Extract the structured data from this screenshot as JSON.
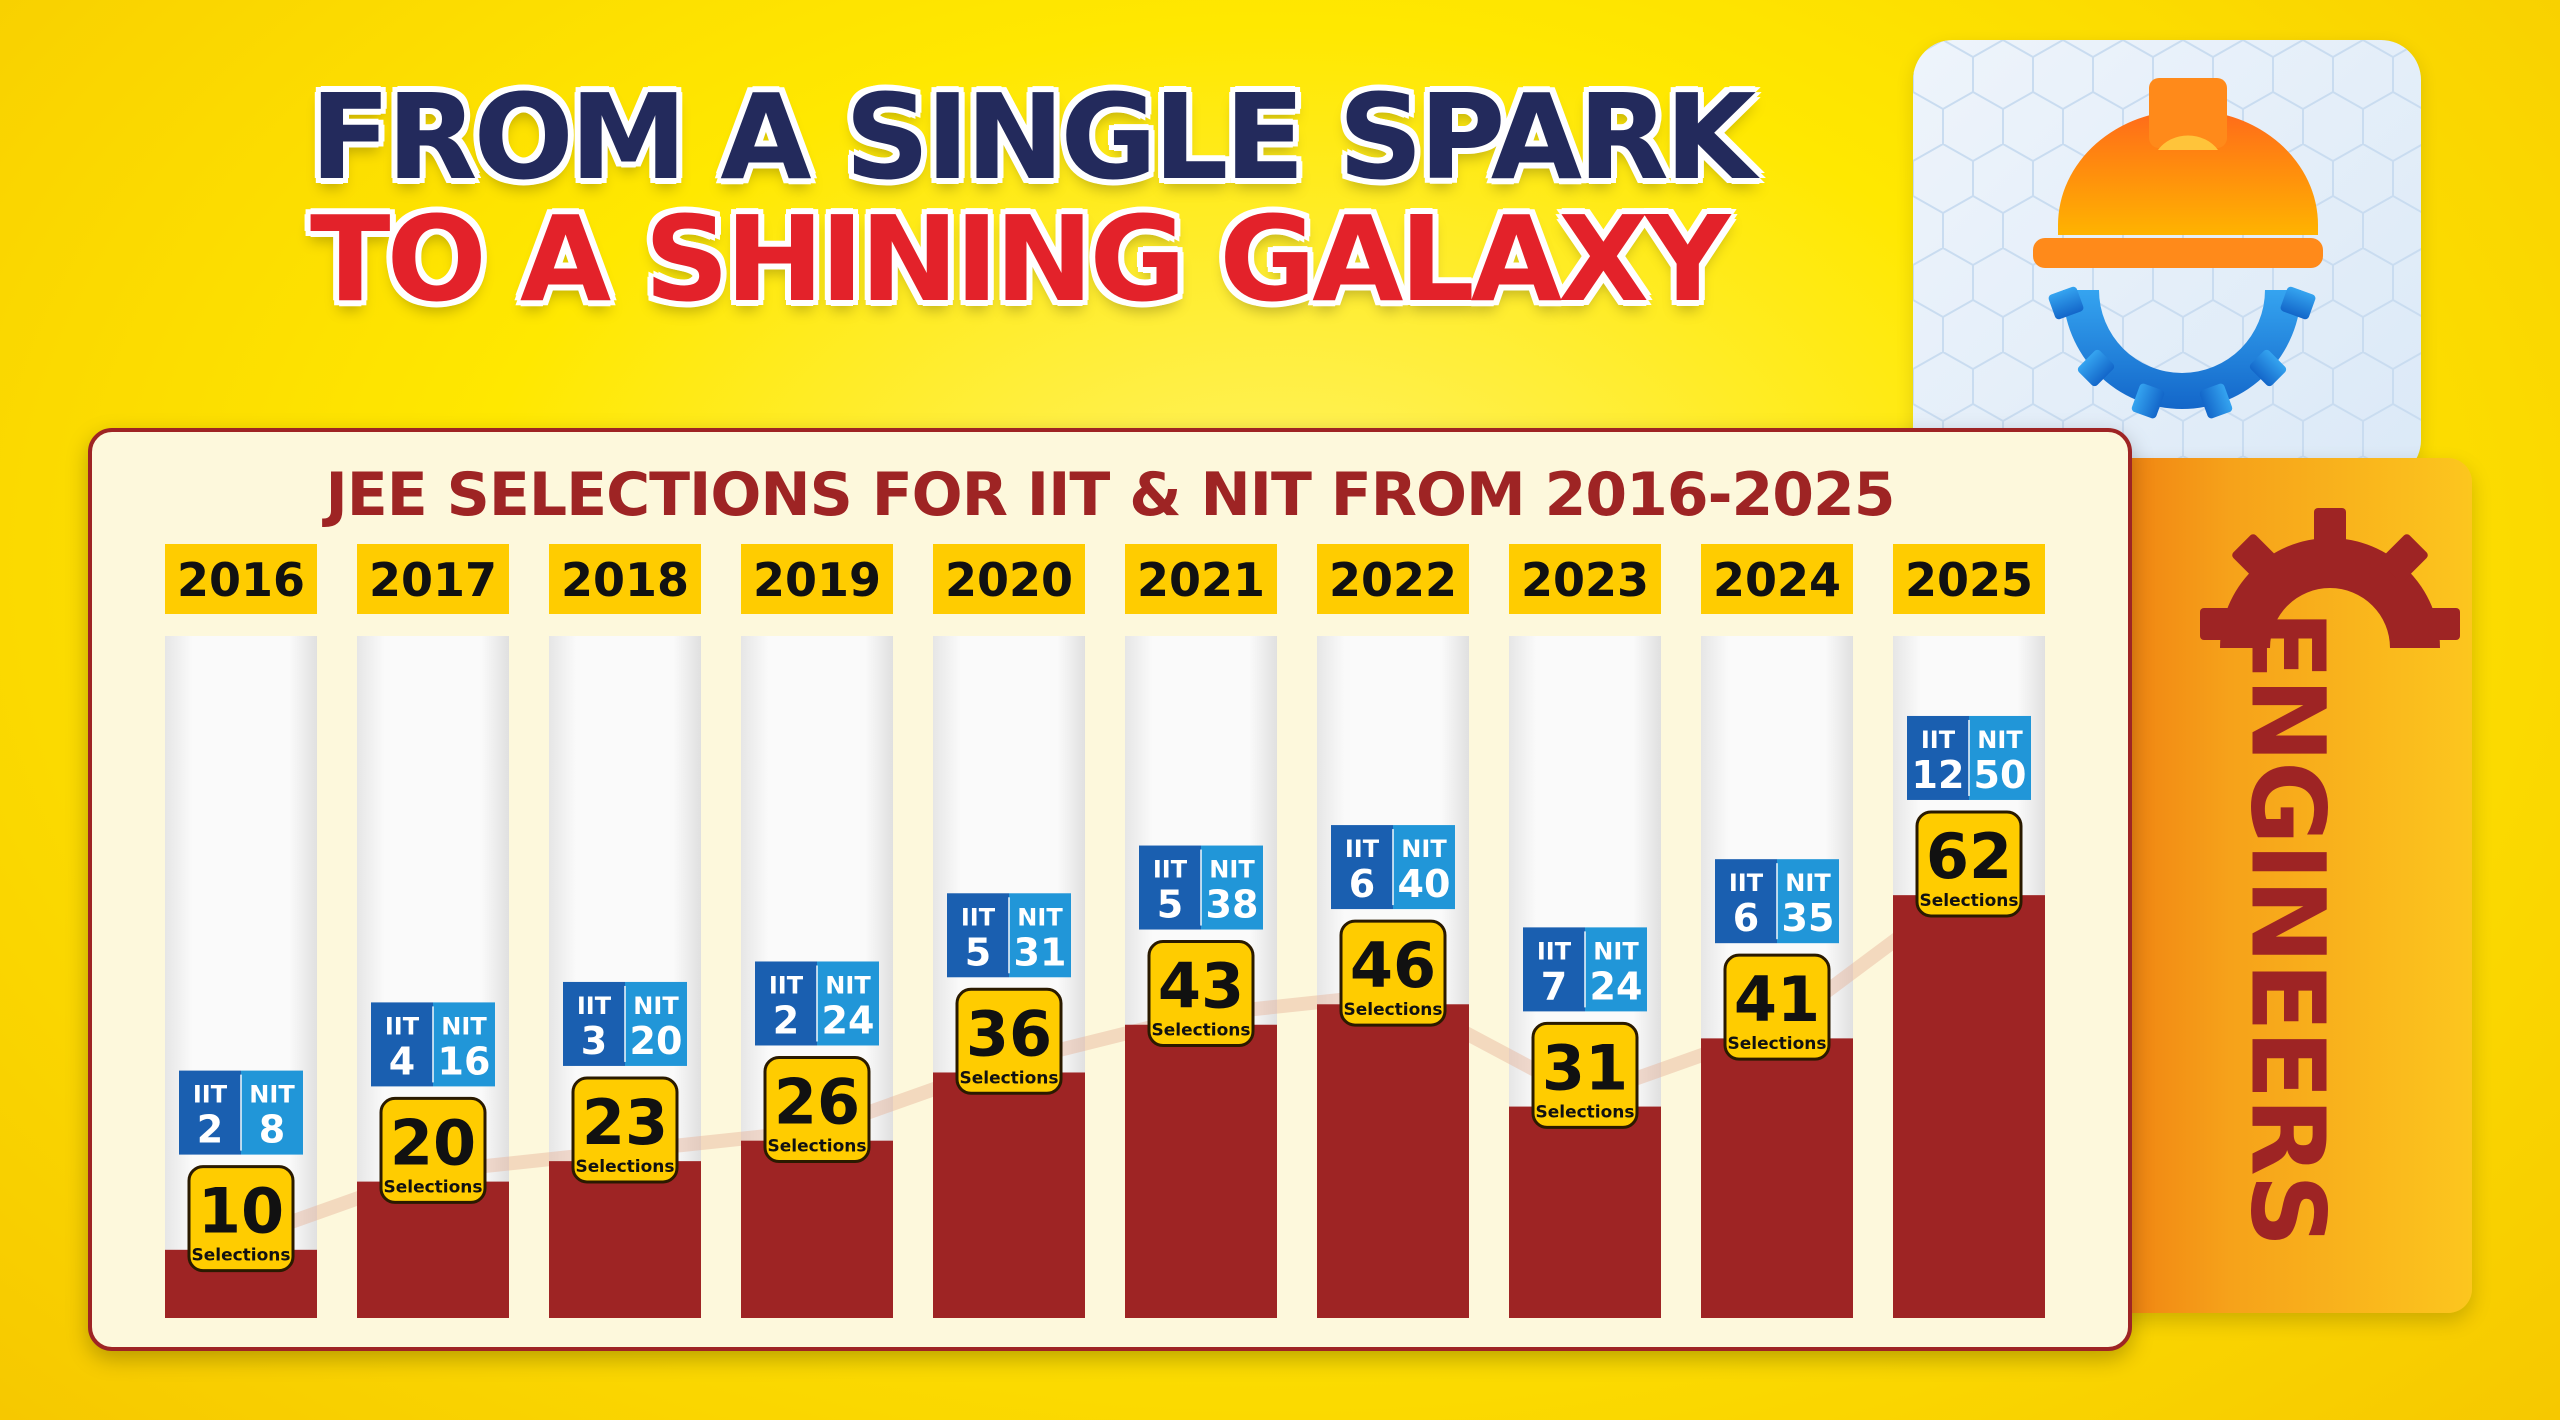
{
  "headline": {
    "line1": "FROM A SINGLE SPARK",
    "line2": "TO A SHINING GALAXY"
  },
  "side_label": "ENGINEERS",
  "icons": {
    "logo": "helmet-gear-icon",
    "side": "gear-icon"
  },
  "colors": {
    "bar": "#9e2424",
    "year_tag": "#ffcc00",
    "iit_tag": "#1a5fb0",
    "nit_tag": "#2196d8",
    "headline_dark": "#232a5c",
    "headline_red": "#e3222a"
  },
  "chart_data": {
    "type": "bar",
    "title": "JEE SELECTIONS FOR IIT & NIT FROM 2016-2025",
    "categories": [
      "2016",
      "2017",
      "2018",
      "2019",
      "2020",
      "2021",
      "2022",
      "2023",
      "2024",
      "2025"
    ],
    "series": [
      {
        "name": "Selections",
        "values": [
          10,
          20,
          23,
          26,
          36,
          43,
          46,
          31,
          41,
          62
        ]
      },
      {
        "name": "IIT",
        "values": [
          2,
          4,
          3,
          2,
          5,
          5,
          6,
          7,
          6,
          12
        ]
      },
      {
        "name": "NIT",
        "values": [
          8,
          16,
          20,
          24,
          31,
          38,
          40,
          24,
          35,
          50
        ]
      }
    ],
    "value_caption": "Selections",
    "iit_label": "IIT",
    "nit_label": "NIT",
    "ylim": [
      0,
      100
    ],
    "grid": false,
    "legend": "none"
  }
}
